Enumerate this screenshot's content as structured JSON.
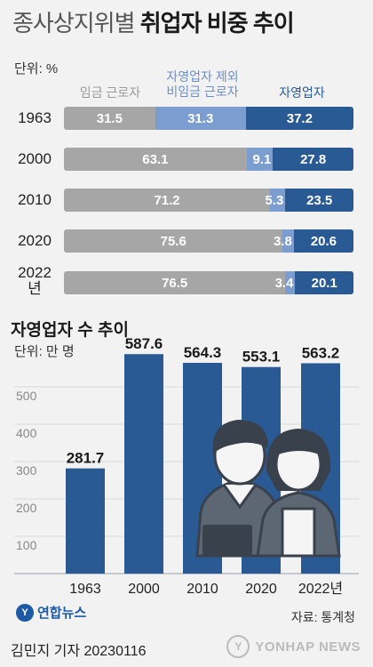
{
  "title": {
    "light": "종사상지위별",
    "bold": "취업자 비중 추이"
  },
  "chart_data": [
    {
      "type": "bar",
      "stacked": true,
      "orientation": "horizontal",
      "unit": "단위: %",
      "categories": [
        "1963",
        "2000",
        "2010",
        "2020",
        "2022"
      ],
      "category_suffix": "년",
      "series": [
        {
          "name": "임금 근로자",
          "values": [
            31.5,
            63.1,
            71.2,
            75.6,
            76.5
          ],
          "color": "#a6a6a6"
        },
        {
          "name": "자영업자 제외 비임금 근로자",
          "values": [
            31.3,
            9.1,
            5.3,
            3.8,
            3.4
          ],
          "color": "#7c9dd0"
        },
        {
          "name": "자영업자",
          "values": [
            37.2,
            27.8,
            23.5,
            20.6,
            20.1
          ],
          "color": "#2a5a94"
        }
      ],
      "legend": [
        {
          "lines": [
            "임금 근로자"
          ]
        },
        {
          "lines": [
            "자영업자 제외",
            "비임금 근로자"
          ]
        },
        {
          "lines": [
            "자영업자"
          ]
        }
      ]
    },
    {
      "type": "bar",
      "title": "자영업자 수 추이",
      "unit": "단위: 만 명",
      "categories": [
        "1963",
        "2000",
        "2010",
        "2020",
        "2022년"
      ],
      "values": [
        281.7,
        587.6,
        564.3,
        553.1,
        563.2
      ],
      "value_labels": [
        "281.7",
        "587.6",
        "564.3",
        "553.1",
        "563.2"
      ],
      "yticks": [
        100,
        200,
        300,
        400,
        500
      ],
      "ylim": [
        0,
        600
      ],
      "grid": true,
      "color": "#2a5a94"
    }
  ],
  "source": "자료: 통계청",
  "logo": {
    "mark": "Y",
    "text": "연합뉴스"
  },
  "byline": "김민지 기자  20230116",
  "watermark": {
    "mark": "Y",
    "text": "YONHAP NEWS"
  },
  "colors": {
    "grid": "#d9d9d9",
    "legend_gray": "#9a9a9a",
    "legend_light": "#6d8fc7",
    "legend_dark": "#2a5a94",
    "figure_hair": "#39414c",
    "figure_skin": "#f5f5f5",
    "figure_cloth": "#5d6773"
  }
}
